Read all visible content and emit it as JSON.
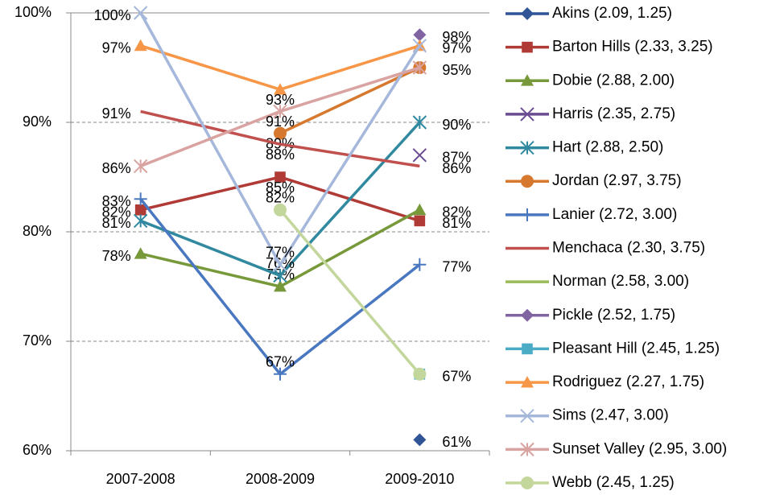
{
  "chart_data": {
    "type": "line",
    "categories": [
      "2007-2008",
      "2008-2009",
      "2009-2010"
    ],
    "ylim": [
      60,
      100
    ],
    "yticks": [
      {
        "value": 60,
        "label": "60%"
      },
      {
        "value": 70,
        "label": "70%"
      },
      {
        "value": 80,
        "label": "80%"
      },
      {
        "value": 90,
        "label": "90%"
      },
      {
        "value": 100,
        "label": "100%"
      }
    ],
    "grid": true,
    "legend": "right",
    "series": [
      {
        "name": "Akins (2.09, 1.25)",
        "color": "#2f5597",
        "marker": "diamond",
        "values": [
          null,
          null,
          61
        ],
        "value_labels": [
          null,
          null,
          "61%"
        ]
      },
      {
        "name": "Barton Hills (2.33, 3.25)",
        "color": "#b03a35",
        "marker": "square",
        "values": [
          82,
          85,
          81
        ],
        "value_labels": [
          "82%",
          "85%",
          "81%"
        ]
      },
      {
        "name": "Dobie (2.88, 2.00)",
        "color": "#77993a",
        "marker": "triangle",
        "values": [
          78,
          75,
          82
        ],
        "value_labels": [
          "78%",
          "75%",
          "82%"
        ]
      },
      {
        "name": "Harris (2.35, 2.75)",
        "color": "#6a4c93",
        "marker": "x",
        "values": [
          null,
          null,
          87
        ],
        "value_labels": [
          null,
          null,
          "87%"
        ]
      },
      {
        "name": "Hart (2.88, 2.50)",
        "color": "#31899f",
        "marker": "star",
        "values": [
          81,
          76,
          90
        ],
        "value_labels": [
          "81%",
          "76%",
          "90%"
        ]
      },
      {
        "name": "Jordan (2.97, 3.75)",
        "color": "#d6782e",
        "marker": "circle",
        "values": [
          null,
          89,
          95
        ],
        "value_labels": [
          null,
          "89%",
          "95%"
        ]
      },
      {
        "name": "Lanier (2.72, 3.00)",
        "color": "#4a78c0",
        "marker": "plus",
        "values": [
          83,
          67,
          77
        ],
        "value_labels": [
          "83%",
          "67%",
          "77%"
        ]
      },
      {
        "name": "Menchaca (2.30, 3.75)",
        "color": "#c0504d",
        "marker": "none",
        "values": [
          91,
          88,
          86
        ],
        "value_labels": [
          "91%",
          "88%",
          "86%"
        ]
      },
      {
        "name": "Norman (2.58, 3.00)",
        "color": "#9bbb59",
        "marker": "none",
        "values": [
          null,
          null,
          null
        ],
        "value_labels": [
          null,
          null,
          null
        ]
      },
      {
        "name": "Pickle (2.52, 1.75)",
        "color": "#8064a2",
        "marker": "diamond",
        "values": [
          null,
          null,
          98
        ],
        "value_labels": [
          null,
          null,
          "98%"
        ]
      },
      {
        "name": "Pleasant Hill (2.45, 1.25)",
        "color": "#4bacc6",
        "marker": "square",
        "values": [
          null,
          null,
          67
        ],
        "value_labels": [
          null,
          null,
          "67%"
        ]
      },
      {
        "name": "Rodriguez (2.27, 1.75)",
        "color": "#f79646",
        "marker": "triangle",
        "values": [
          97,
          93,
          97
        ],
        "value_labels": [
          "97%",
          "93%",
          "97%"
        ]
      },
      {
        "name": "Sims (2.47, 3.00)",
        "color": "#a5b8db",
        "marker": "x",
        "values": [
          100,
          77,
          97
        ],
        "value_labels": [
          "100%",
          "77%",
          null
        ]
      },
      {
        "name": "Sunset Valley (2.95, 3.00)",
        "color": "#d9a3a1",
        "marker": "star",
        "values": [
          86,
          91,
          95
        ],
        "value_labels": [
          "86%",
          "91%",
          null
        ]
      },
      {
        "name": "Webb (2.45, 1.25)",
        "color": "#c3d69b",
        "marker": "circle",
        "values": [
          null,
          82,
          67
        ],
        "value_labels": [
          null,
          "82%",
          null
        ]
      }
    ]
  }
}
